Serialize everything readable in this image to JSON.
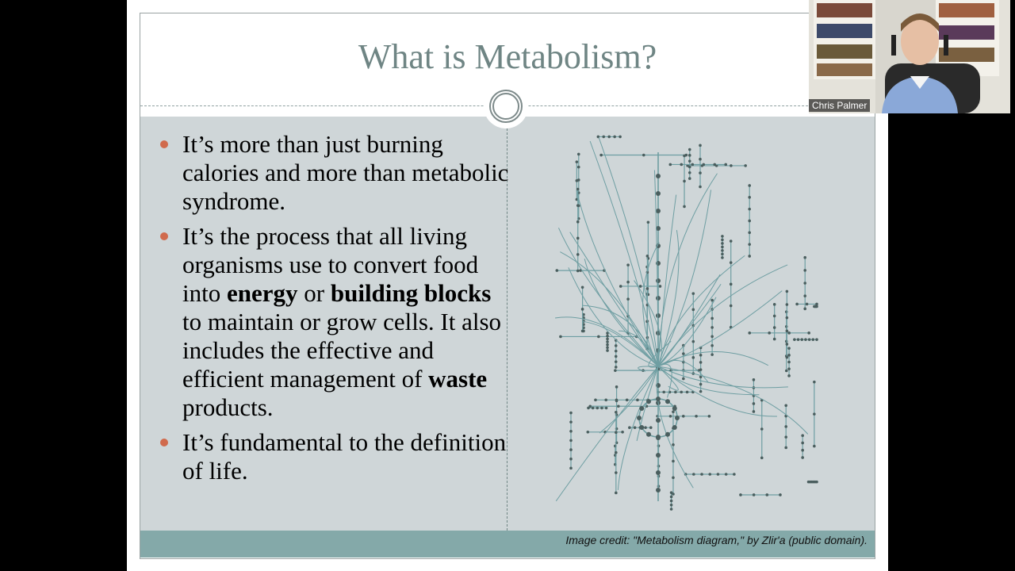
{
  "slide": {
    "title": "What is Metabolism?",
    "bullets": [
      {
        "parts": [
          {
            "text": "It’s more than just burning calories and more than metabolic syndrome.",
            "bold": false
          }
        ]
      },
      {
        "parts": [
          {
            "text": "It’s the process that all living organisms use to convert food into ",
            "bold": false
          },
          {
            "text": "energy",
            "bold": true
          },
          {
            "text": " or ",
            "bold": false
          },
          {
            "text": "building blocks",
            "bold": true
          },
          {
            "text": " to maintain or grow cells. It also includes the effective and efficient management of ",
            "bold": false
          },
          {
            "text": "waste",
            "bold": true
          },
          {
            "text": " products.",
            "bold": false
          }
        ]
      },
      {
        "parts": [
          {
            "text": "It’s fundamental to the definition of life.",
            "bold": false
          }
        ]
      }
    ],
    "image_credit": "Image credit: \"Metabolism diagram,\" by Zlir'a (public domain).",
    "colors": {
      "title": "#6f8584",
      "bullet_dot": "#d06a4c",
      "content_bg": "#cfd6d8",
      "footer_bar": "#84a9a9",
      "diagram_line": "#6e9ea2",
      "diagram_node": "#4a5e5e"
    }
  },
  "participant": {
    "name": "Chris Palmer"
  }
}
